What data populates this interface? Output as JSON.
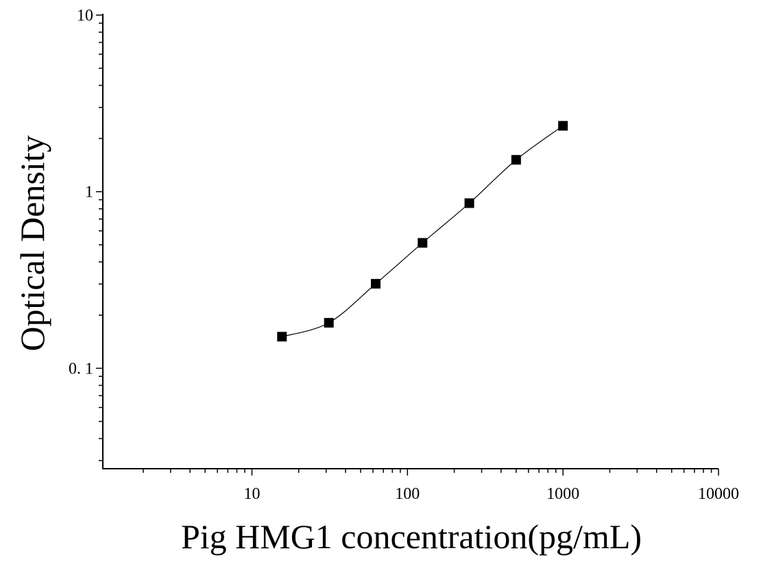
{
  "chart_data": {
    "type": "scatter",
    "title": "",
    "xlabel": "Pig HMG1 concentration(pg/mL)",
    "ylabel": "Optical Density",
    "xscale": "log",
    "yscale": "log",
    "xlim": [
      1.1,
      10000
    ],
    "ylim": [
      0.027,
      10
    ],
    "x_ticks": [
      {
        "value": 10,
        "label": "10"
      },
      {
        "value": 100,
        "label": "100"
      },
      {
        "value": 1000,
        "label": "1000"
      },
      {
        "value": 10000,
        "label": "10000"
      }
    ],
    "y_ticks": [
      {
        "value": 0.1,
        "label": "0. 1"
      },
      {
        "value": 1,
        "label": "1"
      },
      {
        "value": 10,
        "label": "10"
      }
    ],
    "grid": false,
    "marker": "square",
    "series": [
      {
        "points": [
          {
            "x": 15.6,
            "y": 0.151
          },
          {
            "x": 31.25,
            "y": 0.181
          },
          {
            "x": 62.5,
            "y": 0.301
          },
          {
            "x": 125,
            "y": 0.513
          },
          {
            "x": 250,
            "y": 0.861
          },
          {
            "x": 500,
            "y": 1.515
          },
          {
            "x": 1000,
            "y": 2.361
          }
        ],
        "fit_curve": true
      }
    ]
  }
}
